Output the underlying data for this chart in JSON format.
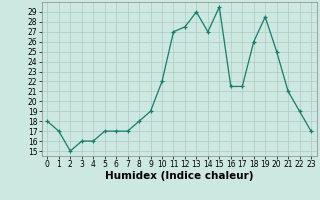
{
  "x": [
    0,
    1,
    2,
    3,
    4,
    5,
    6,
    7,
    8,
    9,
    10,
    11,
    12,
    13,
    14,
    15,
    16,
    17,
    18,
    19,
    20,
    21,
    22,
    23
  ],
  "y": [
    18,
    17,
    15,
    16,
    16,
    17,
    17,
    17,
    18,
    19,
    22,
    27,
    27.5,
    29,
    27,
    29.5,
    21.5,
    21.5,
    26,
    28.5,
    25,
    21,
    19,
    17
  ],
  "xlabel": "Humidex (Indice chaleur)",
  "xlim": [
    -0.5,
    23.5
  ],
  "ylim": [
    14.5,
    30
  ],
  "yticks": [
    15,
    16,
    17,
    18,
    19,
    20,
    21,
    22,
    23,
    24,
    25,
    26,
    27,
    28,
    29
  ],
  "xticks": [
    0,
    1,
    2,
    3,
    4,
    5,
    6,
    7,
    8,
    9,
    10,
    11,
    12,
    13,
    14,
    15,
    16,
    17,
    18,
    19,
    20,
    21,
    22,
    23
  ],
  "line_color": "#1a7a6e",
  "marker": "+",
  "bg_color": "#cce8e0",
  "grid_color": "#aaccc4",
  "tick_fontsize": 5.5,
  "label_fontsize": 7.5
}
